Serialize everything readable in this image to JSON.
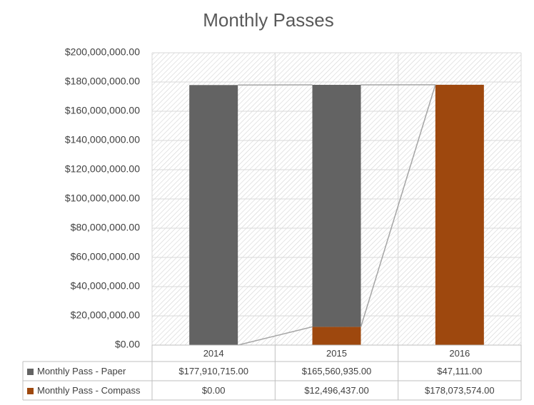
{
  "chart_data": {
    "type": "bar",
    "stacked": true,
    "title": "Monthly Passes",
    "categories": [
      "2014",
      "2015",
      "2016"
    ],
    "series": [
      {
        "name": "Monthly Pass - Paper",
        "color": "#636363",
        "values": [
          177910715,
          165560935,
          47111
        ],
        "value_labels": [
          "$177,910,715.00",
          "$165,560,935.00",
          "$47,111.00"
        ]
      },
      {
        "name": "Monthly Pass - Compass",
        "color": "#9e480e",
        "values": [
          0,
          12496437,
          178073574
        ],
        "value_labels": [
          "$0.00",
          "$12,496,437.00",
          "$178,073,574.00"
        ]
      }
    ],
    "ylim": [
      0,
      200000000
    ],
    "yticks": [
      {
        "value": 0,
        "label": "$0.00"
      },
      {
        "value": 20000000,
        "label": "$20,000,000.00"
      },
      {
        "value": 40000000,
        "label": "$40,000,000.00"
      },
      {
        "value": 60000000,
        "label": "$60,000,000.00"
      },
      {
        "value": 80000000,
        "label": "$80,000,000.00"
      },
      {
        "value": 100000000,
        "label": "$100,000,000.00"
      },
      {
        "value": 120000000,
        "label": "$120,000,000.00"
      },
      {
        "value": 140000000,
        "label": "$140,000,000.00"
      },
      {
        "value": 160000000,
        "label": "$160,000,000.00"
      },
      {
        "value": 180000000,
        "label": "$180,000,000.00"
      },
      {
        "value": 200000000,
        "label": "$200,000,000.00"
      }
    ],
    "grid": true,
    "series_lines": true,
    "data_table": true
  }
}
